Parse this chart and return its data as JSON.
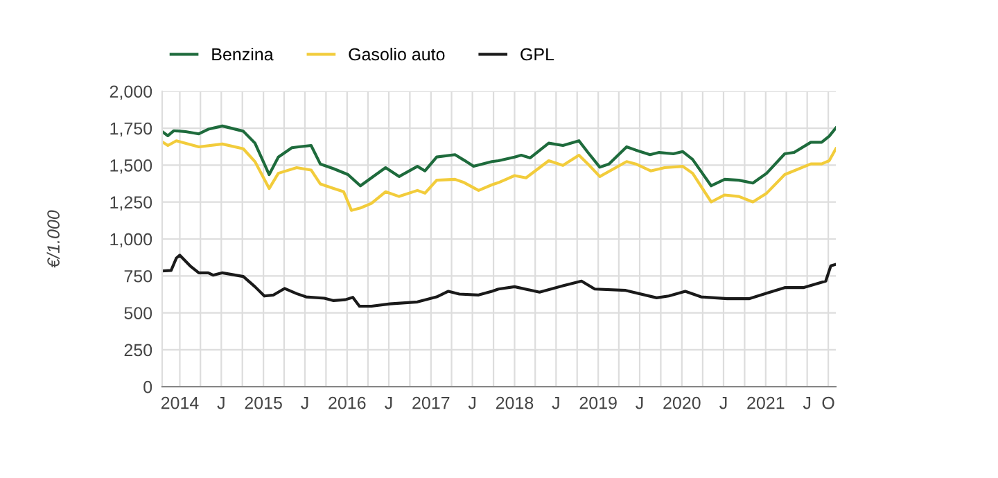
{
  "chart_data": {
    "type": "line",
    "ylabel": "€/1.000",
    "legend": "top left",
    "grid": true,
    "marker": "none",
    "line_style": "solid",
    "xlim": [
      "2013-10-16",
      "2021-11-03"
    ],
    "ylim": [
      0,
      2000
    ],
    "yticks": [
      0,
      250,
      500,
      750,
      {
        "value": 1000,
        "label": "1,000"
      },
      {
        "value": 1250,
        "label": "1,250"
      },
      {
        "value": 1500,
        "label": "1,500"
      },
      {
        "value": 1750,
        "label": "1,750"
      },
      {
        "value": 2000,
        "label": "2,000"
      }
    ],
    "xticks": [
      {
        "value": "2014-01-01",
        "label": "2014"
      },
      {
        "value": "2014-04-01",
        "label": null
      },
      {
        "value": "2014-07-01",
        "label": "J"
      },
      {
        "value": "2014-10-01",
        "label": null
      },
      {
        "value": "2015-01-01",
        "label": "2015"
      },
      {
        "value": "2015-04-01",
        "label": null
      },
      {
        "value": "2015-07-01",
        "label": "J"
      },
      {
        "value": "2015-10-01",
        "label": null
      },
      {
        "value": "2016-01-01",
        "label": "2016"
      },
      {
        "value": "2016-04-01",
        "label": null
      },
      {
        "value": "2016-07-01",
        "label": "J"
      },
      {
        "value": "2016-10-01",
        "label": null
      },
      {
        "value": "2017-01-01",
        "label": "2017"
      },
      {
        "value": "2017-04-01",
        "label": null
      },
      {
        "value": "2017-07-01",
        "label": "J"
      },
      {
        "value": "2017-10-01",
        "label": null
      },
      {
        "value": "2018-01-01",
        "label": "2018"
      },
      {
        "value": "2018-04-01",
        "label": null
      },
      {
        "value": "2018-07-01",
        "label": "J"
      },
      {
        "value": "2018-10-01",
        "label": null
      },
      {
        "value": "2019-01-01",
        "label": "2019"
      },
      {
        "value": "2019-04-01",
        "label": null
      },
      {
        "value": "2019-07-01",
        "label": "J"
      },
      {
        "value": "2019-10-01",
        "label": null
      },
      {
        "value": "2020-01-01",
        "label": "2020"
      },
      {
        "value": "2020-04-01",
        "label": null
      },
      {
        "value": "2020-07-01",
        "label": "J"
      },
      {
        "value": "2020-10-01",
        "label": null
      },
      {
        "value": "2021-01-01",
        "label": "2021"
      },
      {
        "value": "2021-04-01",
        "label": null
      },
      {
        "value": "2021-07-01",
        "label": "J"
      },
      {
        "value": "2021-10-01",
        "label": "O"
      }
    ],
    "series": [
      {
        "name": "Benzina",
        "color": "#1e6b3c",
        "x": [
          "2013-10-16",
          "2013-11-10",
          "2013-12-06",
          "2014-01-26",
          "2014-03-25",
          "2014-05-05",
          "2014-07-06",
          "2014-10-05",
          "2014-11-25",
          "2015-01-26",
          "2015-03-07",
          "2015-05-05",
          "2015-06-03",
          "2015-07-28",
          "2015-09-06",
          "2015-11-03",
          "2016-01-05",
          "2016-02-28",
          "2016-04-16",
          "2016-06-17",
          "2016-08-15",
          "2016-11-03",
          "2016-12-06",
          "2017-01-26",
          "2017-04-16",
          "2017-05-26",
          "2017-07-06",
          "2017-09-24",
          "2017-10-23",
          "2018-01-01",
          "2018-01-30",
          "2018-03-10",
          "2018-05-30",
          "2018-07-31",
          "2018-10-09",
          "2018-11-17",
          "2019-01-08",
          "2019-02-17",
          "2019-05-05",
          "2019-06-14",
          "2019-08-15",
          "2019-09-24",
          "2019-11-25",
          "2020-01-05",
          "2020-02-17",
          "2020-05-08",
          "2020-07-06",
          "2020-09-06",
          "2020-11-06",
          "2021-01-05",
          "2021-03-25",
          "2021-05-05",
          "2021-07-17",
          "2021-09-02",
          "2021-10-05",
          "2021-11-03"
        ],
        "values": [
          1727,
          1699,
          1733,
          1727,
          1712,
          1743,
          1765,
          1730,
          1649,
          1436,
          1555,
          1618,
          1624,
          1633,
          1508,
          1476,
          1436,
          1360,
          1414,
          1483,
          1423,
          1492,
          1461,
          1555,
          1571,
          1533,
          1492,
          1524,
          1530,
          1555,
          1567,
          1549,
          1649,
          1633,
          1665,
          1586,
          1486,
          1508,
          1624,
          1602,
          1571,
          1586,
          1577,
          1592,
          1539,
          1360,
          1404,
          1398,
          1379,
          1445,
          1577,
          1586,
          1655,
          1655,
          1696,
          1752
        ]
      },
      {
        "name": "Gasolio auto",
        "color": "#f2cc3b",
        "x": [
          "2013-10-16",
          "2013-11-10",
          "2013-12-17",
          "2014-03-25",
          "2014-07-06",
          "2014-10-05",
          "2014-11-25",
          "2015-01-26",
          "2015-03-07",
          "2015-05-26",
          "2015-07-28",
          "2015-09-06",
          "2015-11-03",
          "2015-12-17",
          "2016-01-20",
          "2016-02-28",
          "2016-04-16",
          "2016-06-17",
          "2016-08-15",
          "2016-11-03",
          "2016-12-06",
          "2017-01-26",
          "2017-04-16",
          "2017-05-26",
          "2017-07-28",
          "2017-09-24",
          "2017-10-23",
          "2018-01-01",
          "2018-02-20",
          "2018-05-30",
          "2018-07-31",
          "2018-10-09",
          "2018-11-17",
          "2019-01-08",
          "2019-05-05",
          "2019-06-14",
          "2019-08-18",
          "2019-10-18",
          "2020-01-05",
          "2020-02-17",
          "2020-05-08",
          "2020-07-06",
          "2020-09-06",
          "2020-11-06",
          "2021-01-05",
          "2021-03-25",
          "2021-07-17",
          "2021-09-02",
          "2021-10-05",
          "2021-11-03"
        ],
        "values": [
          1658,
          1633,
          1665,
          1624,
          1643,
          1611,
          1524,
          1342,
          1445,
          1483,
          1467,
          1373,
          1342,
          1320,
          1194,
          1210,
          1241,
          1320,
          1288,
          1329,
          1310,
          1398,
          1404,
          1382,
          1329,
          1367,
          1382,
          1429,
          1414,
          1530,
          1498,
          1567,
          1508,
          1423,
          1524,
          1508,
          1461,
          1483,
          1492,
          1445,
          1251,
          1298,
          1288,
          1251,
          1310,
          1436,
          1508,
          1508,
          1530,
          1611
        ]
      },
      {
        "name": "GPL",
        "color": "#1a1a1a",
        "x": [
          "2013-10-16",
          "2013-11-24",
          "2013-12-17",
          "2014-01-01",
          "2014-02-15",
          "2014-03-25",
          "2014-05-05",
          "2014-05-26",
          "2014-07-06",
          "2014-10-05",
          "2014-11-25",
          "2015-01-05",
          "2015-02-14",
          "2015-04-03",
          "2015-05-26",
          "2015-07-06",
          "2015-09-24",
          "2015-11-03",
          "2015-12-24",
          "2016-01-26",
          "2016-02-24",
          "2016-04-16",
          "2016-07-06",
          "2016-11-03",
          "2017-01-26",
          "2017-03-18",
          "2017-05-05",
          "2017-07-28",
          "2017-09-24",
          "2017-10-23",
          "2018-01-01",
          "2018-04-20",
          "2018-07-31",
          "2018-10-20",
          "2018-12-17",
          "2019-05-01",
          "2019-09-13",
          "2019-11-05",
          "2020-01-16",
          "2020-03-25",
          "2020-07-17",
          "2020-10-20",
          "2021-01-05",
          "2021-03-25",
          "2021-06-14",
          "2021-09-20",
          "2021-10-12",
          "2021-11-03"
        ],
        "values": [
          784,
          787,
          871,
          890,
          818,
          771,
          771,
          755,
          771,
          746,
          677,
          614,
          621,
          665,
          630,
          608,
          599,
          583,
          589,
          605,
          545,
          545,
          561,
          574,
          608,
          646,
          627,
          621,
          646,
          661,
          677,
          640,
          683,
          715,
          661,
          652,
          602,
          614,
          646,
          608,
          596,
          596,
          633,
          671,
          671,
          715,
          818,
          828
        ]
      }
    ]
  }
}
